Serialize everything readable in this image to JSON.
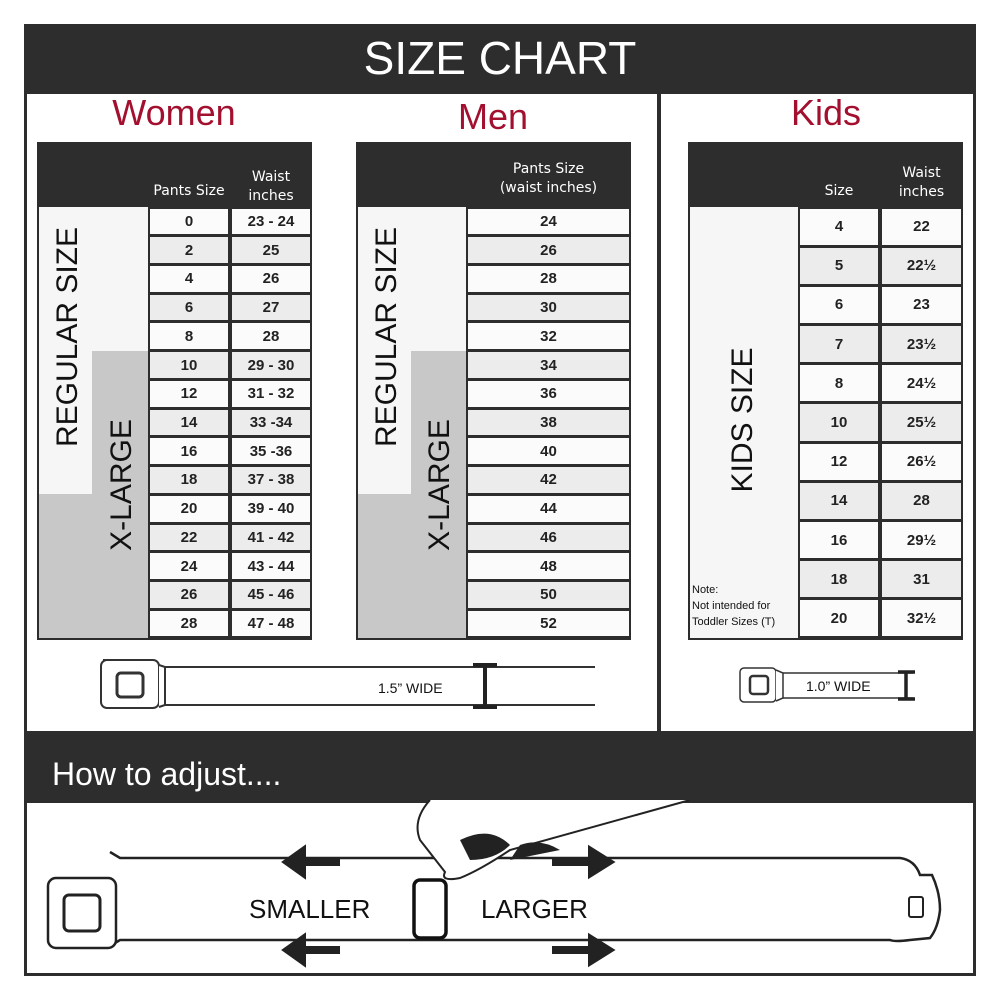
{
  "title": "SIZE CHART",
  "women": {
    "title": "Women",
    "col1": "Pants Size",
    "col2": "Waist inches",
    "regular_label": "REGULAR SIZE",
    "xlarge_label": "X-LARGE",
    "rows": [
      [
        "0",
        "23 - 24"
      ],
      [
        "2",
        "25"
      ],
      [
        "4",
        "26"
      ],
      [
        "6",
        "27"
      ],
      [
        "8",
        "28"
      ],
      [
        "10",
        "29 - 30"
      ],
      [
        "12",
        "31 - 32"
      ],
      [
        "14",
        "33 -34"
      ],
      [
        "16",
        "35 -36"
      ],
      [
        "18",
        "37 - 38"
      ],
      [
        "20",
        "39 - 40"
      ],
      [
        "22",
        "41 - 42"
      ],
      [
        "24",
        "43 - 44"
      ],
      [
        "26",
        "45 - 46"
      ],
      [
        "28",
        "47 - 48"
      ]
    ],
    "belt_width": "1.5” WIDE"
  },
  "men": {
    "title": "Men",
    "col1": "Pants Size (waist inches)",
    "regular_label": "REGULAR SIZE",
    "xlarge_label": "X-LARGE",
    "rows": [
      "24",
      "26",
      "28",
      "30",
      "32",
      "34",
      "36",
      "38",
      "40",
      "42",
      "44",
      "46",
      "48",
      "50",
      "52"
    ]
  },
  "kids": {
    "title": "Kids",
    "col1": "Size",
    "col2": "Waist inches",
    "label": "KIDS SIZE",
    "rows": [
      [
        "4",
        "22"
      ],
      [
        "5",
        "22½"
      ],
      [
        "6",
        "23"
      ],
      [
        "7",
        "23½"
      ],
      [
        "8",
        "24½"
      ],
      [
        "10",
        "25½"
      ],
      [
        "12",
        "26½"
      ],
      [
        "14",
        "28"
      ],
      [
        "16",
        "29½"
      ],
      [
        "18",
        "31"
      ],
      [
        "20",
        "32½"
      ]
    ],
    "note_title": "Note:",
    "note_line1": "Not intended for",
    "note_line2": "Toddler Sizes (T)",
    "belt_width": "1.0” WIDE"
  },
  "adjust": {
    "title": "How to adjust....",
    "smaller": "SMALLER",
    "larger": "LARGER"
  },
  "colors": {
    "dark": "#2d2d2d",
    "accent": "#a3102f",
    "xlarge_fill": "#c8c8c8",
    "alt_row": "#ececec"
  }
}
